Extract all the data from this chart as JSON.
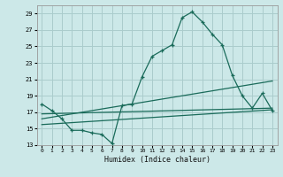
{
  "xlabel": "Humidex (Indice chaleur)",
  "bg_color": "#cce8e8",
  "grid_color": "#aacccc",
  "line_color": "#1a6b5a",
  "xlim": [
    -0.5,
    23.5
  ],
  "ylim": [
    13,
    30
  ],
  "xticks": [
    0,
    1,
    2,
    3,
    4,
    5,
    6,
    7,
    8,
    9,
    10,
    11,
    12,
    13,
    14,
    15,
    16,
    17,
    18,
    19,
    20,
    21,
    22,
    23
  ],
  "yticks": [
    13,
    15,
    17,
    19,
    21,
    23,
    25,
    27,
    29
  ],
  "series1_x": [
    0,
    1,
    2,
    3,
    4,
    5,
    6,
    7,
    8,
    9,
    10,
    11,
    12,
    13,
    14,
    15,
    16,
    17,
    18,
    19,
    20,
    21,
    22,
    23
  ],
  "series1_y": [
    18.0,
    17.2,
    16.2,
    14.8,
    14.8,
    14.5,
    14.3,
    13.2,
    17.8,
    18.0,
    21.3,
    23.8,
    24.5,
    25.2,
    28.5,
    29.2,
    28.0,
    26.5,
    25.2,
    21.5,
    19.0,
    17.5,
    19.3,
    17.2
  ],
  "series2_x": [
    0,
    23
  ],
  "series2_y": [
    15.5,
    17.3
  ],
  "series3_x": [
    0,
    23
  ],
  "series3_y": [
    16.2,
    20.8
  ],
  "series4_x": [
    0,
    23
  ],
  "series4_y": [
    16.8,
    17.5
  ]
}
